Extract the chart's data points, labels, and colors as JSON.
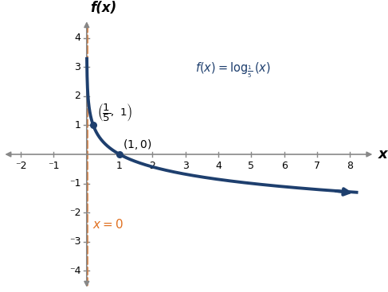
{
  "xlim": [
    -2.6,
    8.8
  ],
  "ylim": [
    -4.7,
    4.7
  ],
  "xticks": [
    -2,
    -1,
    1,
    2,
    3,
    4,
    5,
    6,
    7,
    8
  ],
  "yticks": [
    -4,
    -3,
    -2,
    -1,
    1,
    2,
    3,
    4
  ],
  "xlabel": "x",
  "ylabel": "f(x)",
  "curve_color": "#1e3f6e",
  "asymptote_color": "#e07020",
  "point_color": "#1e3f6e",
  "axis_color": "#888888",
  "tick_color": "#888888",
  "background_color": "#ffffff",
  "x_point1": 0.2,
  "y_point1": 1.0,
  "x_point2": 1.0,
  "y_point2": 0.0,
  "curve_lw": 2.8,
  "asymptote_lw": 1.8,
  "tick_fontsize": 9,
  "label_fontsize": 13
}
